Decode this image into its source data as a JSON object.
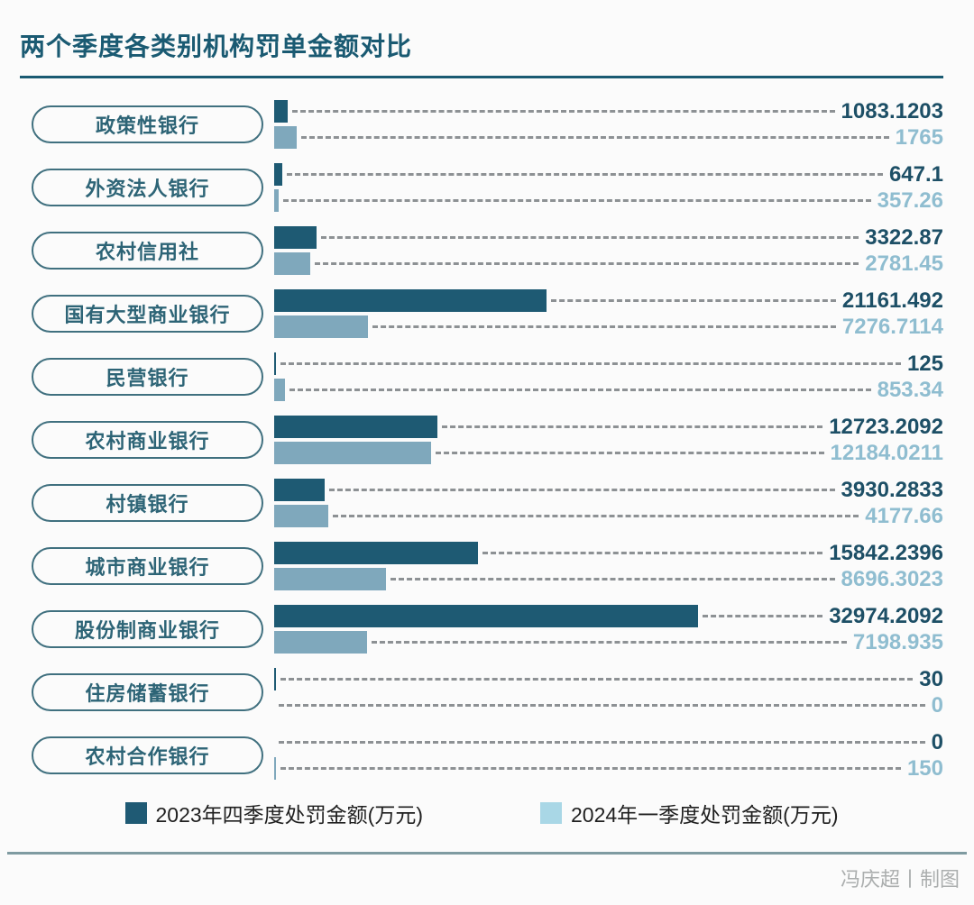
{
  "header": {
    "title": "两个季度各类别机构罚单金额对比"
  },
  "chart_data": {
    "type": "bar",
    "orientation": "horizontal",
    "title": "两个季度各类别机构罚单金额对比",
    "categories": [
      "政策性银行",
      "外资法人银行",
      "农村信用社",
      "国有大型商业银行",
      "民营银行",
      "农村商业银行",
      "村镇银行",
      "城市商业银行",
      "股份制商业银行",
      "住房储蓄银行",
      "农村合作银行"
    ],
    "series": [
      {
        "name": "2023年四季度处罚金额(万元)",
        "color": "#1e5a73",
        "values": [
          1083.1203,
          647.1,
          3322.87,
          21161.492,
          125,
          12723.2092,
          3930.2833,
          15842.2396,
          32974.2092,
          30,
          0
        ],
        "labels": [
          "1083.1203",
          "647.1",
          "3322.87",
          "21161.492",
          "125",
          "12723.2092",
          "3930.2833",
          "15842.2396",
          "32974.2092",
          "30",
          "0"
        ]
      },
      {
        "name": "2024年一季度处罚金额(万元)",
        "color": "#7fa8bc",
        "values": [
          1765,
          357.26,
          2781.45,
          7276.7114,
          853.34,
          12184.0211,
          4177.66,
          8696.3023,
          7198.935,
          0,
          150
        ],
        "labels": [
          "1765",
          "357.26",
          "2781.45",
          "7276.7114",
          "853.34",
          "12184.0211",
          "4177.66",
          "8696.3023",
          "7198.935",
          "0",
          "150"
        ]
      }
    ],
    "xlim": [
      0,
      32974.2092
    ],
    "grid": false,
    "value_labels_shown": true,
    "legend_position": "bottom",
    "value_label_colors": {
      "series0": "#1d4f66",
      "series1": "#8fbdd0"
    }
  },
  "legend": {
    "items": [
      {
        "label": "2023年四季度处罚金额(万元)",
        "color": "#1f5a74"
      },
      {
        "label": "2024年一季度处罚金额(万元)",
        "color": "#a9d7e6"
      }
    ]
  },
  "footer": {
    "credit": "冯庆超丨制图"
  }
}
